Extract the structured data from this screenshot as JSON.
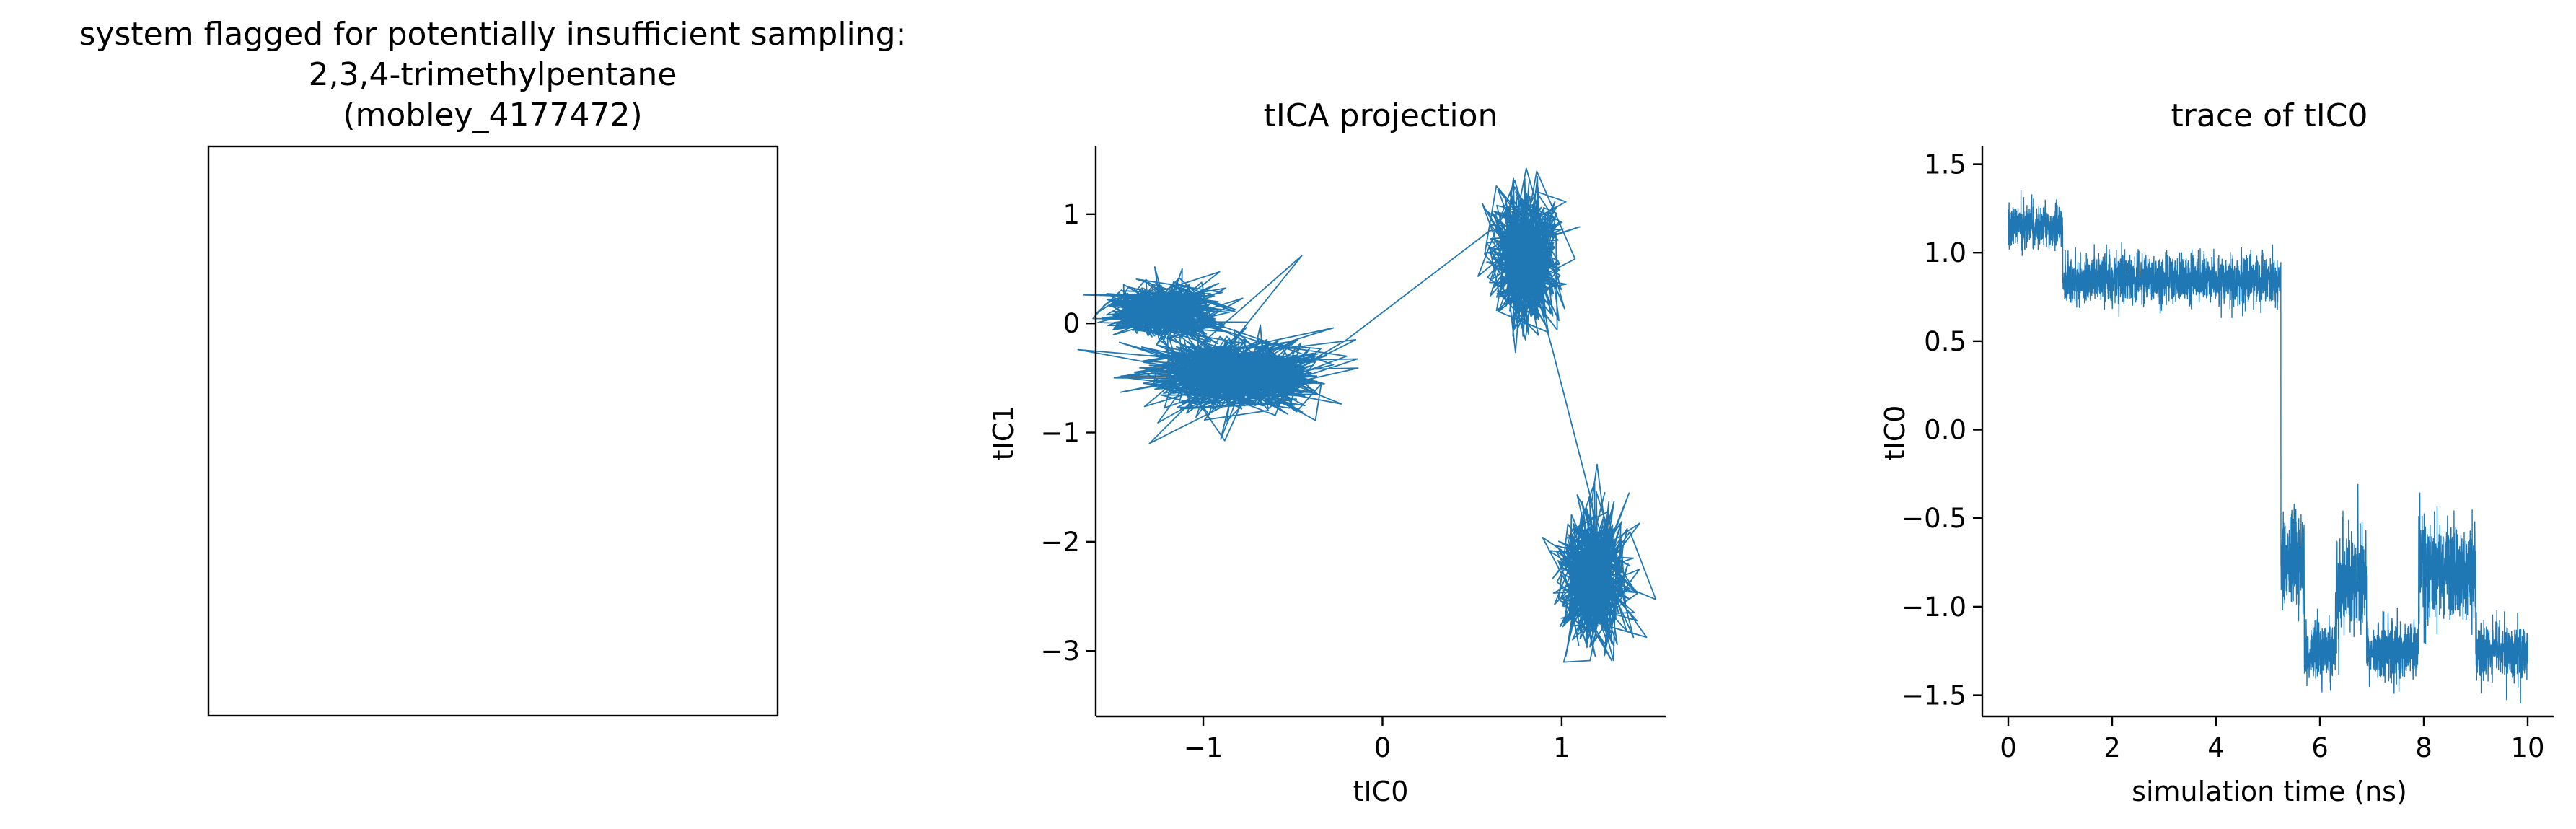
{
  "figure": {
    "suptitle_lines": [
      "system flagged for potentially insufficient sampling:",
      "2,3,4-trimethylpentane",
      "(mobley_4177472)"
    ],
    "series_color": "#1f77b4"
  },
  "chart_data": [
    {
      "type": "image",
      "panel": "structure",
      "title": "",
      "note": "empty framed panel"
    },
    {
      "type": "line",
      "panel": "projection",
      "title": "tICA projection",
      "xlabel": "tIC0",
      "ylabel": "tIC1",
      "xlim": [
        -1.6,
        1.58
      ],
      "ylim": [
        -3.6,
        1.62
      ],
      "xticks": [
        -1,
        0,
        1
      ],
      "xtick_labels": [
        "−1",
        "0",
        "1"
      ],
      "yticks": [
        -3,
        -2,
        -1,
        0,
        1
      ],
      "ytick_labels": [
        "−3",
        "−2",
        "−1",
        "0",
        "1"
      ],
      "grid": false,
      "series": [
        {
          "values_summary": "trajectory visits four clusters in sequence",
          "clusters": [
            {
              "x_center": -1.22,
              "y_center": 0.12,
              "x_spread": 0.14,
              "y_spread": 0.12
            },
            {
              "x_center": -0.82,
              "y_center": -0.46,
              "x_spread": 0.22,
              "y_spread": 0.15
            },
            {
              "x_center": 0.8,
              "y_center": 0.6,
              "x_spread": 0.09,
              "y_spread": 0.28
            },
            {
              "x_center": 1.17,
              "y_center": -2.35,
              "x_spread": 0.09,
              "y_spread": 0.28
            }
          ],
          "transitions": [
            {
              "from": [
                -0.2,
                -0.15
              ],
              "to": [
                0.6,
                0.85
              ]
            },
            {
              "from": [
                0.95,
                -0.25
              ],
              "to": [
                1.17,
                -1.65
              ]
            }
          ]
        }
      ]
    },
    {
      "type": "line",
      "panel": "trace",
      "title": "trace of tIC0",
      "xlabel": "simulation time (ns)",
      "ylabel": "tIC0",
      "xlim": [
        -0.5,
        10.5
      ],
      "ylim": [
        -1.62,
        1.6
      ],
      "xticks": [
        0,
        2,
        4,
        6,
        8,
        10
      ],
      "xtick_labels": [
        "0",
        "2",
        "4",
        "6",
        "8",
        "10"
      ],
      "yticks": [
        -1.5,
        -1.0,
        -0.5,
        0.0,
        0.5,
        1.0,
        1.5
      ],
      "ytick_labels": [
        "−1.5",
        "−1.0",
        "−0.5",
        "0.0",
        "0.5",
        "1.0",
        "1.5"
      ],
      "grid": false,
      "series": [
        {
          "segments": [
            {
              "t_start": 0.0,
              "t_end": 1.05,
              "level": 1.15,
              "noise": 0.06
            },
            {
              "t_start": 1.05,
              "t_end": 5.25,
              "level": 0.85,
              "noise": 0.07
            },
            {
              "t_start": 5.25,
              "t_end": 5.7,
              "level": -0.75,
              "noise": 0.15
            },
            {
              "t_start": 5.7,
              "t_end": 6.3,
              "level": -1.25,
              "noise": 0.08
            },
            {
              "t_start": 6.3,
              "t_end": 6.9,
              "level": -0.85,
              "noise": 0.15
            },
            {
              "t_start": 6.9,
              "t_end": 7.9,
              "level": -1.25,
              "noise": 0.08
            },
            {
              "t_start": 7.9,
              "t_end": 9.0,
              "level": -0.8,
              "noise": 0.15
            },
            {
              "t_start": 9.0,
              "t_end": 10.0,
              "level": -1.25,
              "noise": 0.08
            }
          ]
        }
      ]
    }
  ]
}
